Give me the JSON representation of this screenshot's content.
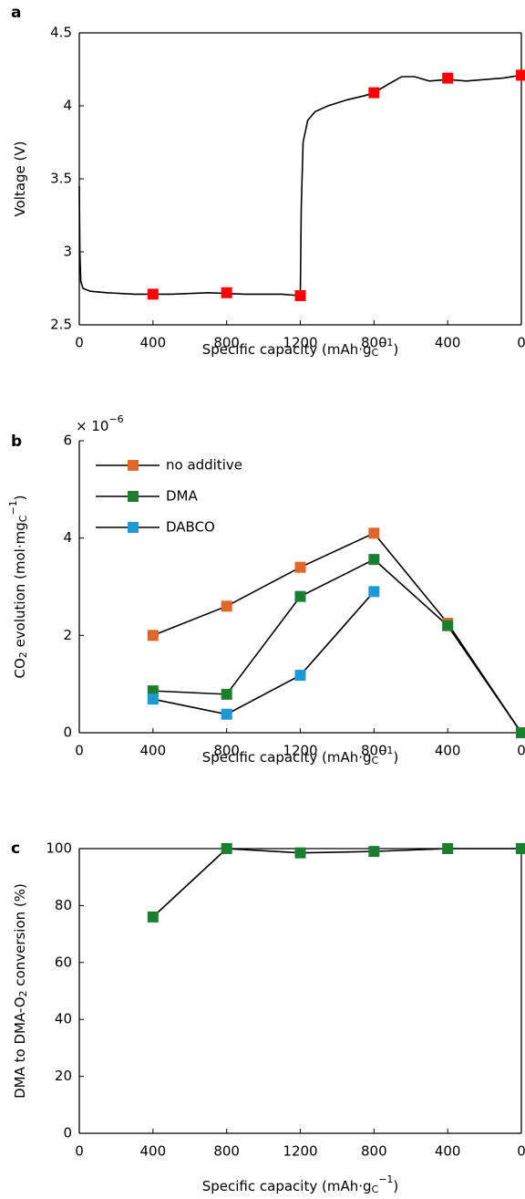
{
  "chart_data": [
    {
      "type": "line",
      "panel_label": "a",
      "box": true,
      "line_color": "#000000",
      "xlabel": [
        "Specific capacity (mAh·g",
        "C",
        "−1",
        ")"
      ],
      "ylabel": [
        "Voltage (V)"
      ],
      "xlim": [
        0,
        2400
      ],
      "xticks": [
        0,
        400,
        800,
        1200,
        {
          "value": 1600,
          "label": "800"
        },
        {
          "value": 2000,
          "label": "400"
        },
        {
          "value": 2400,
          "label": "0"
        }
      ],
      "ylim": [
        2.5,
        4.5
      ],
      "yticks": [
        2.5,
        3,
        3.5,
        4,
        4.5
      ],
      "series": [
        {
          "color": "#000000",
          "marker": "none",
          "line": true,
          "x": [
            0,
            3,
            8,
            20,
            60,
            150,
            300,
            500,
            700,
            900,
            1100,
            1195,
            1200,
            1205,
            1215,
            1240,
            1280,
            1350,
            1450,
            1550,
            1600,
            1680,
            1750,
            1820,
            1900,
            2000,
            2100,
            2200,
            2300,
            2400
          ],
          "values": [
            3.45,
            3.0,
            2.8,
            2.75,
            2.73,
            2.72,
            2.71,
            2.71,
            2.72,
            2.71,
            2.71,
            2.7,
            2.7,
            3.3,
            3.75,
            3.9,
            3.96,
            4.0,
            4.04,
            4.07,
            4.09,
            4.15,
            4.2,
            4.2,
            4.17,
            4.18,
            4.17,
            4.18,
            4.19,
            4.21
          ]
        },
        {
          "color": "#ff0000",
          "marker": "square",
          "line": false,
          "x": [
            400,
            800,
            1200,
            1600,
            2000,
            2400
          ],
          "values": [
            2.71,
            2.72,
            2.7,
            4.09,
            4.19,
            4.21
          ]
        }
      ]
    },
    {
      "type": "line",
      "panel_label": "b",
      "box": false,
      "line_color": "#000000",
      "multiplier": [
        "× 10",
        "−6"
      ],
      "xlabel": [
        "Specific capacity (mAh·g",
        "C",
        "−1",
        ")"
      ],
      "ylabel": [
        "CO",
        "2",
        " evolution (mol·mg",
        "C",
        "−1",
        ")"
      ],
      "xlim": [
        0,
        2400
      ],
      "xticks": [
        0,
        400,
        800,
        1200,
        {
          "value": 1600,
          "label": "800"
        },
        {
          "value": 2000,
          "label": "400"
        },
        {
          "value": 2400,
          "label": "0"
        }
      ],
      "ylim": [
        0,
        6
      ],
      "yticks": [
        0,
        2,
        4,
        6
      ],
      "series": [
        {
          "name": "no additive",
          "color": "#e0662a",
          "marker": "square",
          "line": true,
          "x": [
            400,
            800,
            1200,
            1600,
            2000,
            2400
          ],
          "values": [
            2.0,
            2.6,
            3.4,
            4.1,
            2.25,
            0
          ]
        },
        {
          "name": "DMA",
          "color": "#1a7f2e",
          "marker": "square",
          "line": true,
          "x": [
            400,
            800,
            1200,
            1600,
            2000,
            2400
          ],
          "values": [
            0.86,
            0.79,
            2.8,
            3.56,
            2.2,
            0
          ]
        },
        {
          "name": "DABCO",
          "color": "#1b9ad6",
          "marker": "square",
          "line": true,
          "x": [
            400,
            800,
            1200,
            1600
          ],
          "values": [
            0.69,
            0.38,
            1.18,
            2.9
          ]
        }
      ]
    },
    {
      "type": "line",
      "panel_label": "c",
      "box": true,
      "line_color": "#000000",
      "xlabel": [
        "Specific capacity (mAh·g",
        "C",
        "−1",
        ")"
      ],
      "ylabel": [
        "DMA to DMA-O",
        "2",
        " conversion (%)"
      ],
      "xlim": [
        0,
        2400
      ],
      "xticks": [
        0,
        400,
        800,
        1200,
        {
          "value": 1600,
          "label": "800"
        },
        {
          "value": 2000,
          "label": "400"
        },
        {
          "value": 2400,
          "label": "0"
        }
      ],
      "ylim": [
        0,
        100
      ],
      "yticks": [
        0,
        20,
        40,
        60,
        80,
        100
      ],
      "series": [
        {
          "color": "#1a7f2e",
          "marker": "square",
          "line": true,
          "x": [
            400,
            800,
            1200,
            1600,
            2000,
            2400
          ],
          "values": [
            76,
            100,
            98.5,
            99,
            100,
            100
          ]
        }
      ]
    }
  ]
}
